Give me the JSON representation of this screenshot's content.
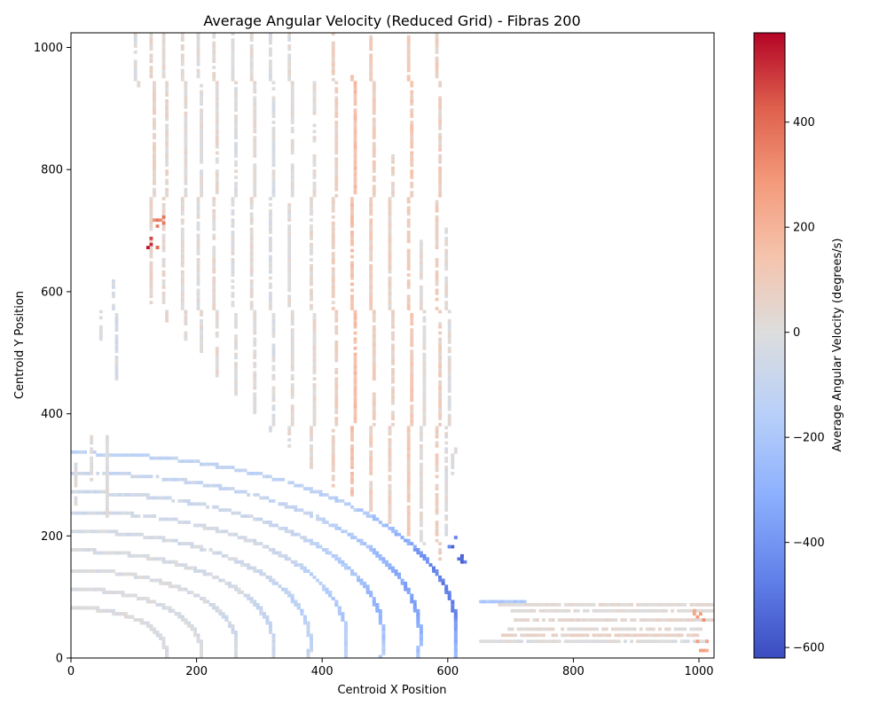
{
  "chart_data": {
    "type": "heatmap",
    "title": "Average Angular Velocity (Reduced Grid) - Fibras 200",
    "xlabel": "Centroid X Position",
    "ylabel": "Centroid Y Position",
    "xlim": [
      0,
      1024
    ],
    "ylim": [
      0,
      1024
    ],
    "x_ticks": [
      0,
      200,
      400,
      600,
      800,
      1000
    ],
    "y_ticks": [
      0,
      200,
      400,
      600,
      800,
      1000
    ],
    "x_tick_labels": [
      "0",
      "200",
      "400",
      "600",
      "800",
      "1000"
    ],
    "y_tick_labels": [
      "0",
      "200",
      "400",
      "600",
      "800",
      "1000"
    ],
    "colormap": "coolwarm",
    "colorbar": {
      "label": "Average Angular Velocity (degrees/s)",
      "vmin": -620,
      "vmax": 570,
      "ticks": [
        400,
        200,
        0,
        -200,
        -400,
        -600
      ],
      "tick_labels": [
        "400",
        "200",
        "0",
        "−200",
        "−400",
        "−600"
      ]
    },
    "cell_size": 5,
    "grid": false,
    "structures": [
      {
        "name": "arc-band",
        "center": [
          0,
          0
        ],
        "radius": 150,
        "value": -10
      },
      {
        "name": "arc-band",
        "center": [
          0,
          0
        ],
        "radius": 205,
        "value": -20
      },
      {
        "name": "arc-band",
        "center": [
          0,
          0
        ],
        "radius": 262,
        "value": -40
      },
      {
        "name": "arc-band",
        "center": [
          0,
          0
        ],
        "radius": 320,
        "value": -60
      },
      {
        "name": "arc-band",
        "center": [
          0,
          0
        ],
        "radius": 378,
        "value": -90
      },
      {
        "name": "arc-band",
        "center": [
          0,
          0
        ],
        "radius": 436,
        "value": -130
      },
      {
        "name": "arc-band",
        "center": [
          0,
          0
        ],
        "radius": 494,
        "value": -170
      },
      {
        "name": "arc-band",
        "center": [
          0,
          0
        ],
        "radius": 552,
        "value": -220
      },
      {
        "name": "arc-band",
        "center": [
          0,
          0
        ],
        "radius": 610,
        "value": -300
      },
      {
        "name": "vertical-fiber",
        "x": 105,
        "y_range": [
          935,
          1024
        ],
        "value": 0
      },
      {
        "name": "vertical-fiber",
        "x": 130,
        "y_range": [
          580,
          1024
        ],
        "value": 60
      },
      {
        "name": "vertical-fiber",
        "x": 150,
        "y_range": [
          550,
          1024
        ],
        "value": 40
      },
      {
        "name": "vertical-fiber",
        "x": 180,
        "y_range": [
          520,
          1024
        ],
        "value": 20
      },
      {
        "name": "vertical-fiber",
        "x": 205,
        "y_range": [
          500,
          1024
        ],
        "value": 10
      },
      {
        "name": "vertical-fiber",
        "x": 230,
        "y_range": [
          460,
          1024
        ],
        "value": 30
      },
      {
        "name": "vertical-fiber",
        "x": 260,
        "y_range": [
          430,
          1024
        ],
        "value": 0
      },
      {
        "name": "vertical-fiber",
        "x": 290,
        "y_range": [
          400,
          1024
        ],
        "value": 20
      },
      {
        "name": "vertical-fiber",
        "x": 320,
        "y_range": [
          370,
          1024
        ],
        "value": -10
      },
      {
        "name": "vertical-fiber",
        "x": 350,
        "y_range": [
          340,
          1024
        ],
        "value": 10
      },
      {
        "name": "vertical-fiber",
        "x": 385,
        "y_range": [
          310,
          940
        ],
        "value": 30
      },
      {
        "name": "vertical-fiber",
        "x": 420,
        "y_range": [
          280,
          1024
        ],
        "value": 80
      },
      {
        "name": "vertical-fiber",
        "x": 450,
        "y_range": [
          260,
          950
        ],
        "value": 150
      },
      {
        "name": "vertical-fiber",
        "x": 480,
        "y_range": [
          240,
          1024
        ],
        "value": 90
      },
      {
        "name": "vertical-fiber",
        "x": 510,
        "y_range": [
          220,
          820
        ],
        "value": 60
      },
      {
        "name": "vertical-fiber",
        "x": 540,
        "y_range": [
          200,
          1024
        ],
        "value": 110
      },
      {
        "name": "vertical-fiber",
        "x": 560,
        "y_range": [
          180,
          680
        ],
        "value": 20
      },
      {
        "name": "vertical-fiber",
        "x": 585,
        "y_range": [
          160,
          1024
        ],
        "value": 80
      },
      {
        "name": "vertical-fiber",
        "x": 600,
        "y_range": [
          200,
          700
        ],
        "value": 10
      },
      {
        "name": "vertical-fiber",
        "x": 612,
        "y_range": [
          300,
          340
        ],
        "value": 0
      },
      {
        "name": "horizontal-band",
        "y": 90,
        "x_range": [
          650,
          720
        ],
        "value": -200
      },
      {
        "name": "horizontal-band",
        "y": 85,
        "x_range": [
          680,
          1024
        ],
        "value": 30
      },
      {
        "name": "horizontal-band",
        "y": 75,
        "x_range": [
          700,
          1024
        ],
        "value": 10
      },
      {
        "name": "horizontal-band",
        "y": 60,
        "x_range": [
          700,
          1024
        ],
        "value": 40
      },
      {
        "name": "horizontal-band",
        "y": 45,
        "x_range": [
          690,
          1000
        ],
        "value": 20
      },
      {
        "name": "horizontal-band",
        "y": 35,
        "x_range": [
          680,
          1000
        ],
        "value": 60
      },
      {
        "name": "horizontal-band",
        "y": 25,
        "x_range": [
          650,
          1010
        ],
        "value": 0
      },
      {
        "name": "left-fragment",
        "x": 8,
        "y_range": [
          245,
          320
        ],
        "value": 0
      },
      {
        "name": "left-fragment",
        "x": 35,
        "y_range": [
          290,
          360
        ],
        "value": 0
      },
      {
        "name": "left-fragment",
        "x": 60,
        "y_range": [
          230,
          360
        ],
        "value": 0
      },
      {
        "name": "left-fragment",
        "x": 45,
        "y_range": [
          520,
          565
        ],
        "value": 0
      },
      {
        "name": "left-fragment",
        "x": 70,
        "y_range": [
          455,
          615
        ],
        "value": -30
      },
      {
        "name": "hotspot",
        "x": 130,
        "y": 680,
        "value": 560
      },
      {
        "name": "hotspot",
        "x": 140,
        "y": 715,
        "value": 400
      },
      {
        "name": "hotspot",
        "x": 1005,
        "y": 20,
        "value": 300
      },
      {
        "name": "hotspot",
        "x": 1000,
        "y": 72,
        "value": 320
      },
      {
        "name": "hotspot",
        "x": 620,
        "y": 160,
        "value": -600
      },
      {
        "name": "hotspot",
        "x": 610,
        "y": 190,
        "value": -560
      }
    ]
  }
}
